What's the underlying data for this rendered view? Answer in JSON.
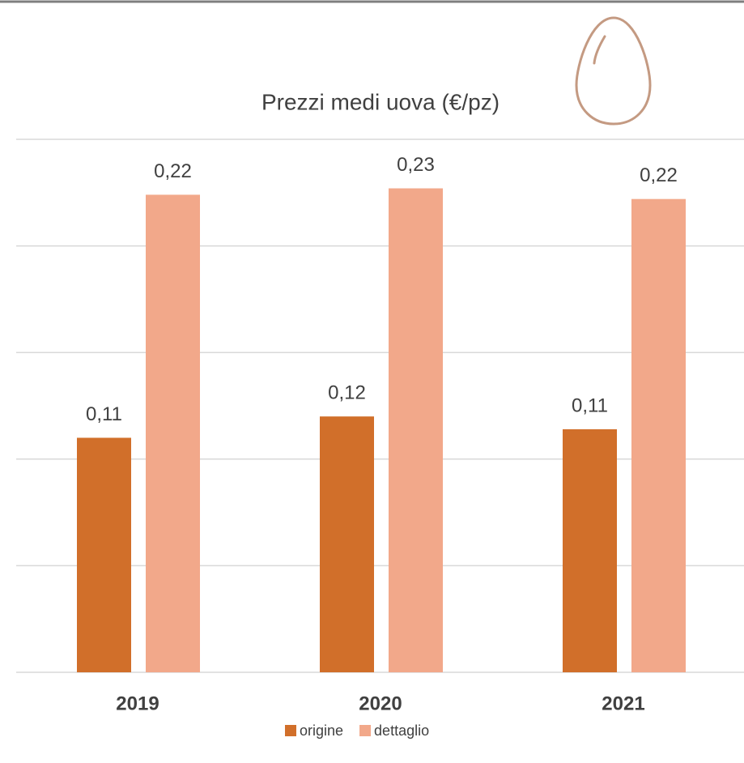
{
  "chart_data": {
    "type": "bar",
    "title": "Prezzi medi uova (€/pz)",
    "categories": [
      "2019",
      "2020",
      "2021"
    ],
    "series": [
      {
        "name": "origine",
        "color": "#d16f2a",
        "values": [
          0.11,
          0.12,
          0.114
        ],
        "value_labels": [
          "0,11",
          "0,12",
          "0,11"
        ]
      },
      {
        "name": "dettaglio",
        "color": "#f2a88a",
        "values": [
          0.224,
          0.227,
          0.222
        ],
        "value_labels": [
          "0,22",
          "0,23",
          "0,22"
        ]
      }
    ],
    "ylim": [
      0,
      0.25
    ],
    "yticks": [
      0,
      0.05,
      0.1,
      0.15,
      0.2,
      0.25
    ],
    "grid": true,
    "legend": "bottom"
  }
}
